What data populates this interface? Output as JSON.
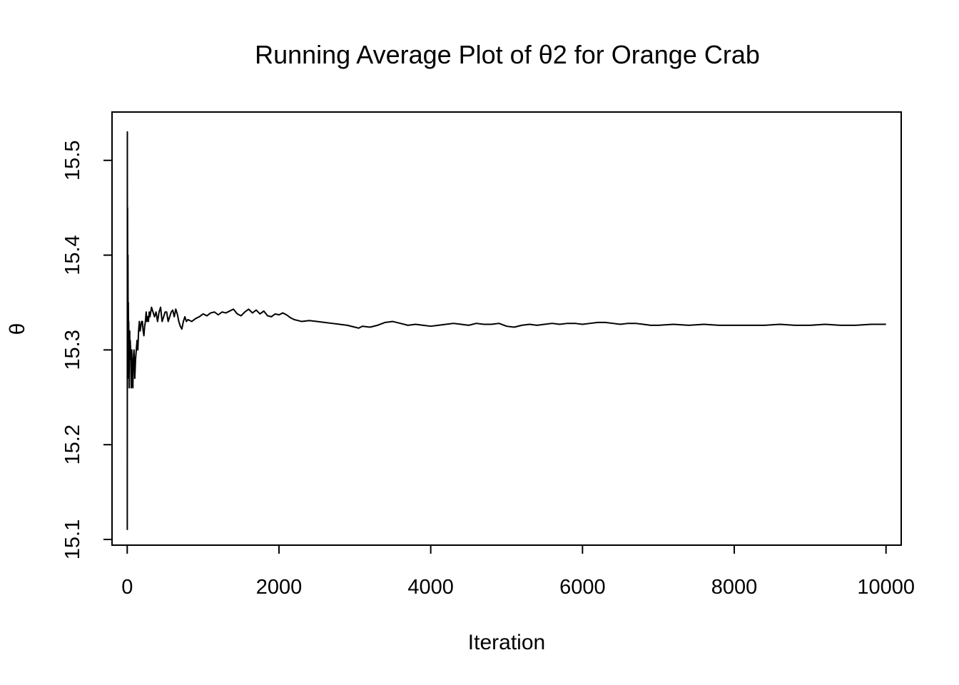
{
  "chart_data": {
    "type": "line",
    "title": "Running Average Plot of θ2 for Orange Crab",
    "xlabel": "Iteration",
    "ylabel": "θ",
    "xlim": [
      -200,
      10200
    ],
    "ylim": [
      15.094,
      15.551
    ],
    "x_ticks": [
      0,
      2000,
      4000,
      6000,
      8000,
      10000
    ],
    "y_ticks": [
      15.1,
      15.2,
      15.3,
      15.4,
      15.5
    ],
    "x_tick_labels": [
      "0",
      "2000",
      "4000",
      "6000",
      "8000",
      "10000"
    ],
    "y_tick_labels": [
      "15.1",
      "15.2",
      "15.3",
      "15.4",
      "15.5"
    ],
    "grid": false,
    "legend": "none",
    "series": [
      {
        "name": "running average θ2",
        "color": "#000000",
        "x": [
          1,
          2,
          3,
          5,
          8,
          10,
          12,
          15,
          18,
          20,
          22,
          25,
          28,
          30,
          33,
          36,
          40,
          45,
          50,
          55,
          60,
          65,
          70,
          75,
          80,
          90,
          100,
          110,
          120,
          130,
          140,
          150,
          160,
          170,
          180,
          190,
          200,
          210,
          220,
          230,
          240,
          250,
          260,
          270,
          280,
          290,
          300,
          320,
          340,
          360,
          380,
          400,
          420,
          440,
          460,
          480,
          500,
          520,
          540,
          560,
          580,
          600,
          620,
          640,
          660,
          680,
          700,
          720,
          740,
          760,
          780,
          800,
          850,
          900,
          950,
          1000,
          1050,
          1100,
          1150,
          1200,
          1250,
          1300,
          1350,
          1400,
          1450,
          1500,
          1550,
          1600,
          1650,
          1700,
          1750,
          1800,
          1850,
          1900,
          1950,
          2000,
          2050,
          2100,
          2150,
          2200,
          2250,
          2300,
          2400,
          2500,
          2600,
          2700,
          2800,
          2900,
          3000,
          3050,
          3100,
          3200,
          3300,
          3400,
          3500,
          3600,
          3700,
          3800,
          3900,
          4000,
          4100,
          4200,
          4300,
          4400,
          4500,
          4600,
          4700,
          4800,
          4900,
          5000,
          5100,
          5200,
          5300,
          5400,
          5500,
          5600,
          5700,
          5800,
          5900,
          6000,
          6100,
          6200,
          6300,
          6400,
          6500,
          6600,
          6700,
          6800,
          6900,
          7000,
          7200,
          7400,
          7600,
          7800,
          8000,
          8200,
          8400,
          8600,
          8800,
          9000,
          9200,
          9400,
          9600,
          9800,
          10000
        ],
        "values": [
          15.11,
          15.53,
          15.26,
          15.45,
          15.27,
          15.4,
          15.32,
          15.35,
          15.3,
          15.33,
          15.28,
          15.31,
          15.26,
          15.3,
          15.32,
          15.29,
          15.31,
          15.3,
          15.29,
          15.26,
          15.3,
          15.27,
          15.28,
          15.26,
          15.29,
          15.3,
          15.27,
          15.29,
          15.3,
          15.31,
          15.3,
          15.32,
          15.33,
          15.32,
          15.325,
          15.33,
          15.33,
          15.32,
          15.315,
          15.325,
          15.33,
          15.34,
          15.33,
          15.335,
          15.33,
          15.34,
          15.335,
          15.345,
          15.34,
          15.335,
          15.34,
          15.33,
          15.34,
          15.345,
          15.33,
          15.335,
          15.34,
          15.34,
          15.33,
          15.335,
          15.34,
          15.342,
          15.335,
          15.343,
          15.338,
          15.33,
          15.325,
          15.322,
          15.33,
          15.335,
          15.33,
          15.332,
          15.33,
          15.333,
          15.335,
          15.338,
          15.336,
          15.339,
          15.34,
          15.337,
          15.34,
          15.339,
          15.341,
          15.343,
          15.338,
          15.336,
          15.34,
          15.343,
          15.339,
          15.342,
          15.338,
          15.341,
          15.336,
          15.335,
          15.338,
          15.337,
          15.339,
          15.337,
          15.334,
          15.332,
          15.331,
          15.33,
          15.331,
          15.33,
          15.329,
          15.328,
          15.327,
          15.326,
          15.324,
          15.323,
          15.325,
          15.324,
          15.326,
          15.329,
          15.33,
          15.328,
          15.326,
          15.327,
          15.326,
          15.325,
          15.326,
          15.327,
          15.328,
          15.327,
          15.326,
          15.328,
          15.327,
          15.327,
          15.328,
          15.325,
          15.324,
          15.326,
          15.327,
          15.326,
          15.327,
          15.328,
          15.327,
          15.328,
          15.328,
          15.327,
          15.328,
          15.329,
          15.329,
          15.328,
          15.327,
          15.328,
          15.328,
          15.327,
          15.326,
          15.326,
          15.327,
          15.326,
          15.327,
          15.326,
          15.326,
          15.326,
          15.326,
          15.327,
          15.326,
          15.326,
          15.327,
          15.326,
          15.326,
          15.327,
          15.327
        ]
      }
    ]
  }
}
